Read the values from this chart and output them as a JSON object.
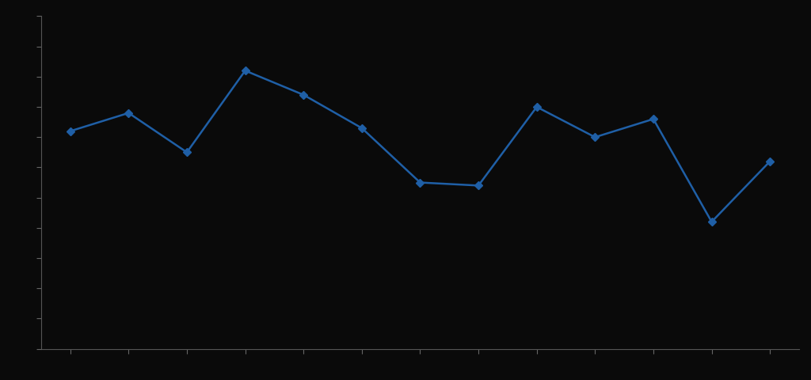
{
  "x_values": [
    1,
    2,
    3,
    4,
    5,
    6,
    7,
    8,
    9,
    10,
    11,
    12,
    13
  ],
  "y_values": [
    72,
    78,
    65,
    92,
    84,
    73,
    55,
    54,
    80,
    70,
    76,
    42,
    62
  ],
  "line_color": "#1f5fa6",
  "marker": "D",
  "marker_size": 5,
  "linewidth": 1.8,
  "background_color": "#0a0a0a",
  "axes_color": "#555555",
  "tick_color": "#666666",
  "ylim": [
    0,
    110
  ],
  "xlim": [
    0.5,
    13.5
  ],
  "title": "",
  "xlabel": "",
  "ylabel": "",
  "figsize": [
    10.24,
    4.8
  ],
  "dpi": 100
}
